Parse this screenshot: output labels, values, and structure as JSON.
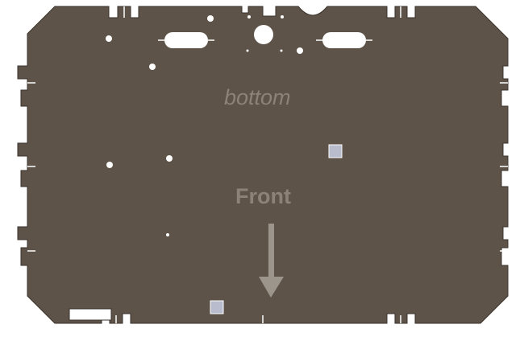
{
  "diagram": {
    "colors": {
      "plate": "#5e5348",
      "plate_edge": "#3a322b",
      "cutout": "#ffffff",
      "square_cutout": "#b9bccd",
      "label": "#8c8378",
      "arrow": "#9c958c"
    },
    "labels": {
      "bottom": "bottom",
      "front": "Front"
    },
    "icons": {
      "direction_arrow": "arrow-down-icon"
    }
  }
}
